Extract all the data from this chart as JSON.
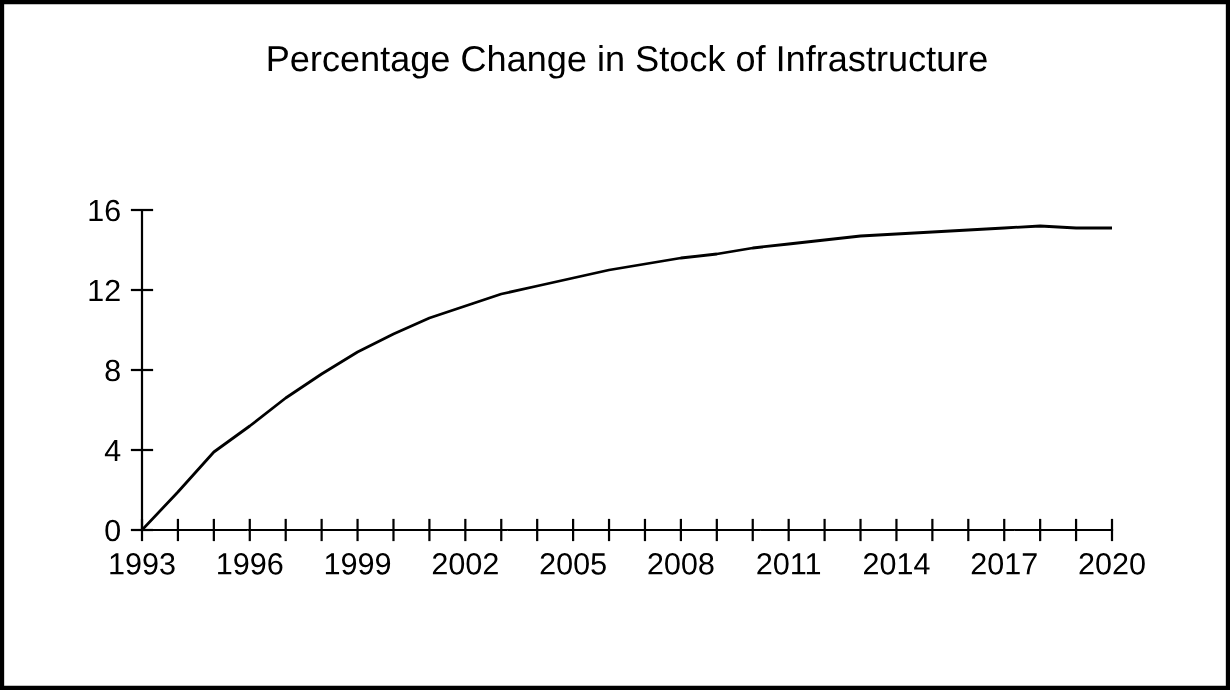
{
  "chart_data": {
    "type": "line",
    "title": "Percentage Change in Stock of Infrastructure",
    "x": [
      1993,
      1994,
      1995,
      1996,
      1997,
      1998,
      1999,
      2000,
      2001,
      2002,
      2003,
      2004,
      2005,
      2006,
      2007,
      2008,
      2009,
      2010,
      2011,
      2012,
      2013,
      2014,
      2015,
      2016,
      2017,
      2018,
      2019,
      2020
    ],
    "series": [
      {
        "color": "#000000",
        "values": [
          0,
          1.9,
          3.9,
          5.2,
          6.6,
          7.8,
          8.9,
          9.8,
          10.6,
          11.2,
          11.8,
          12.2,
          12.6,
          13.0,
          13.3,
          13.6,
          13.8,
          14.1,
          14.3,
          14.5,
          14.7,
          14.8,
          14.9,
          15.0,
          15.1,
          15.2,
          15.1,
          15.1
        ]
      }
    ],
    "xlim": [
      1993,
      2020
    ],
    "ylim": [
      0,
      16
    ],
    "xticks": [
      1993,
      {
        "value": 1994,
        "label": null
      },
      {
        "value": 1995,
        "label": null
      },
      1996,
      {
        "value": 1997,
        "label": null
      },
      {
        "value": 1998,
        "label": null
      },
      1999,
      {
        "value": 2000,
        "label": null
      },
      {
        "value": 2001,
        "label": null
      },
      2002,
      {
        "value": 2003,
        "label": null
      },
      {
        "value": 2004,
        "label": null
      },
      2005,
      {
        "value": 2006,
        "label": null
      },
      {
        "value": 2007,
        "label": null
      },
      2008,
      {
        "value": 2009,
        "label": null
      },
      {
        "value": 2010,
        "label": null
      },
      2011,
      {
        "value": 2012,
        "label": null
      },
      {
        "value": 2013,
        "label": null
      },
      2014,
      {
        "value": 2015,
        "label": null
      },
      {
        "value": 2016,
        "label": null
      },
      2017,
      {
        "value": 2018,
        "label": null
      },
      {
        "value": 2019,
        "label": null
      },
      2020
    ],
    "yticks": [
      0,
      4,
      8,
      12,
      16
    ],
    "grid": false,
    "legend": false,
    "marker": "none",
    "line_style": "solid"
  }
}
